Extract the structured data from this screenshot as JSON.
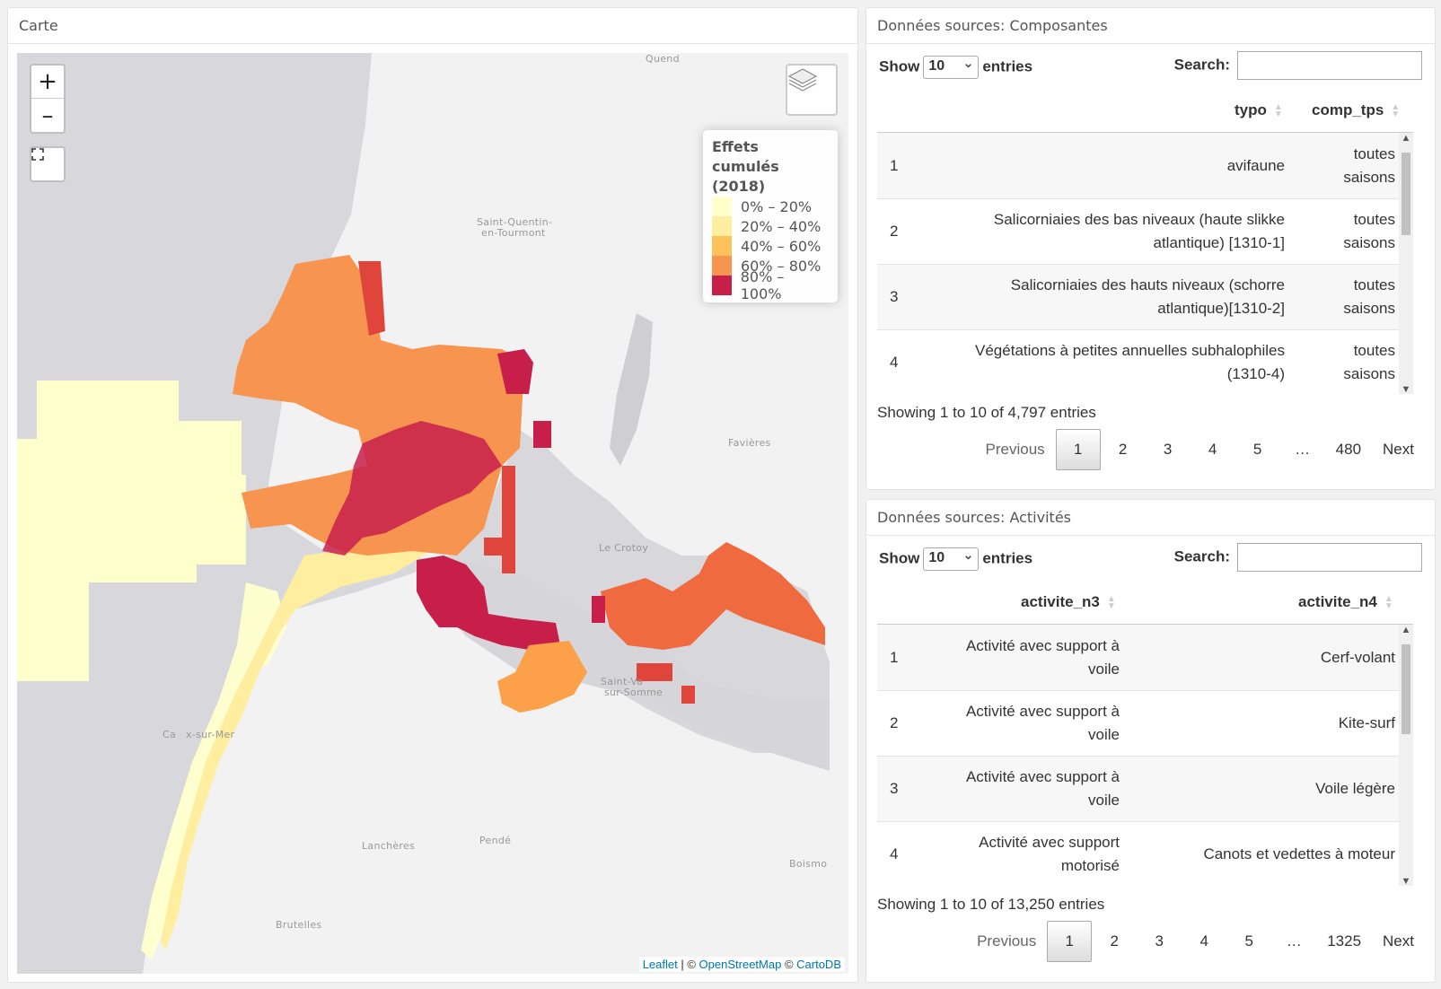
{
  "map_panel": {
    "title": "Carte",
    "zoom_in": "+",
    "zoom_out": "–",
    "legend": {
      "title": "Effets cumulés (2018)",
      "items": [
        {
          "label": "0% – 20%",
          "color": "#ffffcc"
        },
        {
          "label": "20% – 40%",
          "color": "#ffeda0"
        },
        {
          "label": "40% – 60%",
          "color": "#fec25b"
        },
        {
          "label": "60% – 80%",
          "color": "#f79450"
        },
        {
          "label": "80% – 100%",
          "color": "#c81e4a"
        }
      ]
    },
    "towns": [
      "Quend",
      "Saint-Quentin-",
      "en-Tourmont",
      "Favières",
      "Le Crotoy",
      "Saint-Va",
      "sur-Somme",
      "Ca",
      "x-sur-Mer",
      "Lanchères",
      "Pendé",
      "Boismo",
      "Brutelles"
    ],
    "attribution": {
      "leaflet": "Leaflet",
      "sep1": " | © ",
      "osm": "OpenStreetMap",
      "sep2": " © ",
      "carto": "CartoDB"
    }
  },
  "composantes": {
    "title": "Données sources: Composantes",
    "show_label": "Show",
    "entries_value": "10",
    "entries_label": "entries",
    "search_label": "Search:",
    "columns": [
      "typo",
      "comp_tps"
    ],
    "rows": [
      {
        "n": "1",
        "a": "avifaune",
        "b": "toutes saisons"
      },
      {
        "n": "2",
        "a": "Salicorniaies des bas niveaux (haute slikke atlantique) [1310-1]",
        "b": "toutes saisons"
      },
      {
        "n": "3",
        "a": "Salicorniaies des hauts niveaux (schorre atlantique)[1310-2]",
        "b": "toutes saisons"
      },
      {
        "n": "4",
        "a": "Végétations à petites annuelles subhalophiles (1310-4)",
        "b": "toutes saisons"
      }
    ],
    "info": "Showing 1 to 10 of 4,797 entries",
    "pages": [
      "Previous",
      "1",
      "2",
      "3",
      "4",
      "5",
      "…",
      "480",
      "Next"
    ]
  },
  "activites": {
    "title": "Données sources: Activités",
    "show_label": "Show",
    "entries_value": "10",
    "entries_label": "entries",
    "search_label": "Search:",
    "columns": [
      "activite_n3",
      "activite_n4"
    ],
    "rows": [
      {
        "n": "1",
        "a": "Activité avec support à voile",
        "b": "Cerf-volant"
      },
      {
        "n": "2",
        "a": "Activité avec support à voile",
        "b": "Kite-surf"
      },
      {
        "n": "3",
        "a": "Activité avec support à voile",
        "b": "Voile légère"
      },
      {
        "n": "4",
        "a": "Activité avec support motorisé",
        "b": "Canots et vedettes à moteur"
      }
    ],
    "info": "Showing 1 to 10 of 13,250 entries",
    "pages": [
      "Previous",
      "1",
      "2",
      "3",
      "4",
      "5",
      "…",
      "1325",
      "Next"
    ]
  }
}
